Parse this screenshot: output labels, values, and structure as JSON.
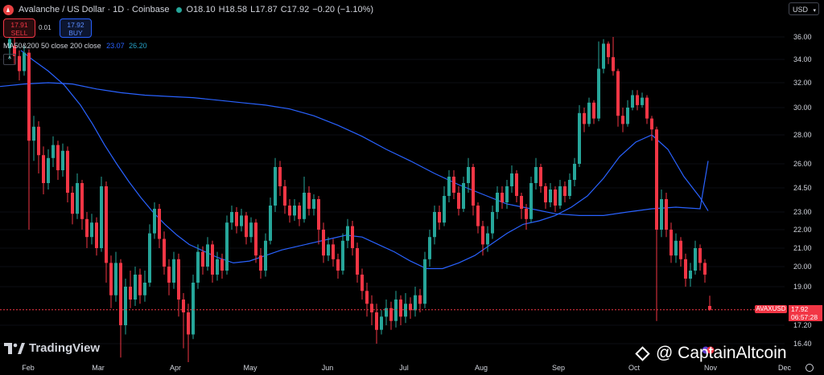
{
  "header": {
    "title": "Avalanche / US Dollar · 1D · Coinbase",
    "open": "O18.10",
    "high": "H18.58",
    "low": "L17.87",
    "close": "C17.92",
    "change": "−0.20 (−1.10%)"
  },
  "trade": {
    "sell_price": "17.91",
    "sell_label": "SELL",
    "spread": "0.01",
    "buy_price": "17.92",
    "buy_label": "BUY"
  },
  "indicator": {
    "label": "MA50&200 50 close 200 close",
    "ma50_value": "23.07",
    "ma200_value": "26.20"
  },
  "currency": "USD",
  "price_label": {
    "ticker": "AVAXUSD",
    "price": "17.92",
    "countdown": "06:57:28"
  },
  "branding": {
    "tradingview": "TradingView",
    "watermark": "@ CaptainAltcoin"
  },
  "colors": {
    "up": "#26a69a",
    "down": "#f23645",
    "ma50": "#2962ff",
    "ma200": "#2962ff",
    "background": "#000000"
  },
  "chart_data": {
    "type": "candlestick",
    "symbol": "AVAXUSD",
    "exchange": "Coinbase",
    "interval": "1D",
    "y_ticks": [
      "36.00",
      "34.00",
      "32.00",
      "30.00",
      "28.00",
      "26.00",
      "24.50",
      "23.00",
      "22.00",
      "21.00",
      "20.00",
      "19.00",
      "17.20",
      "16.40"
    ],
    "x_ticks": [
      "Feb",
      "Mar",
      "Apr",
      "May",
      "Jun",
      "Jul",
      "Aug",
      "Sep",
      "Oct",
      "Nov",
      "Dec"
    ],
    "last_price": 17.92,
    "ma50": [
      [
        26,
        34.8
      ],
      [
        40,
        34.0
      ],
      [
        60,
        33.0
      ],
      [
        80,
        31.8
      ],
      [
        100,
        30.2
      ],
      [
        115,
        28.8
      ],
      [
        130,
        27.3
      ],
      [
        145,
        26.0
      ],
      [
        160,
        24.9
      ],
      [
        175,
        23.9
      ],
      [
        190,
        23.0
      ],
      [
        205,
        22.3
      ],
      [
        220,
        21.7
      ],
      [
        235,
        21.2
      ],
      [
        250,
        20.9
      ],
      [
        270,
        20.5
      ],
      [
        290,
        20.2
      ],
      [
        310,
        20.3
      ],
      [
        330,
        20.6
      ],
      [
        350,
        20.9
      ],
      [
        370,
        21.1
      ],
      [
        390,
        21.3
      ],
      [
        410,
        21.5
      ],
      [
        430,
        21.7
      ],
      [
        450,
        21.6
      ],
      [
        470,
        21.2
      ],
      [
        490,
        20.8
      ],
      [
        510,
        20.3
      ],
      [
        530,
        19.9
      ],
      [
        550,
        19.9
      ],
      [
        570,
        20.2
      ],
      [
        590,
        20.6
      ],
      [
        610,
        21.2
      ],
      [
        630,
        21.8
      ],
      [
        650,
        22.3
      ],
      [
        670,
        22.5
      ],
      [
        690,
        22.8
      ],
      [
        710,
        23.3
      ],
      [
        730,
        24.0
      ],
      [
        750,
        25.1
      ],
      [
        770,
        26.5
      ],
      [
        790,
        27.5
      ],
      [
        810,
        28.0
      ],
      [
        830,
        27.0
      ],
      [
        850,
        25.2
      ],
      [
        870,
        23.9
      ],
      [
        880,
        23.07
      ]
    ],
    "ma200": [
      [
        0,
        31.7
      ],
      [
        30,
        31.9
      ],
      [
        60,
        32.0
      ],
      [
        90,
        31.9
      ],
      [
        120,
        31.5
      ],
      [
        150,
        31.2
      ],
      [
        180,
        31.0
      ],
      [
        210,
        30.9
      ],
      [
        240,
        30.8
      ],
      [
        270,
        30.6
      ],
      [
        300,
        30.4
      ],
      [
        330,
        30.2
      ],
      [
        360,
        29.9
      ],
      [
        390,
        29.4
      ],
      [
        420,
        28.7
      ],
      [
        450,
        27.9
      ],
      [
        480,
        27.0
      ],
      [
        510,
        26.2
      ],
      [
        540,
        25.4
      ],
      [
        570,
        24.7
      ],
      [
        600,
        24.1
      ],
      [
        630,
        23.5
      ],
      [
        660,
        23.2
      ],
      [
        690,
        22.9
      ],
      [
        720,
        22.8
      ],
      [
        750,
        22.8
      ],
      [
        780,
        23.0
      ],
      [
        810,
        23.2
      ],
      [
        840,
        23.3
      ],
      [
        870,
        23.2
      ],
      [
        880,
        26.2
      ]
    ],
    "candles": [
      [
        12,
        35.0,
        35.8,
        34.0,
        36.5
      ],
      [
        18,
        35.2,
        34.3,
        33.6,
        35.9
      ],
      [
        24,
        34.3,
        33.0,
        32.2,
        34.8
      ],
      [
        30,
        33.0,
        34.6,
        32.6,
        35.2
      ],
      [
        36,
        34.6,
        27.6,
        22.0,
        34.9
      ],
      [
        42,
        27.6,
        28.6,
        26.2,
        29.4
      ],
      [
        48,
        28.6,
        26.6,
        25.4,
        29.0
      ],
      [
        54,
        26.6,
        24.8,
        24.1,
        27.2
      ],
      [
        60,
        24.8,
        26.4,
        24.4,
        27.0
      ],
      [
        66,
        26.4,
        27.3,
        25.8,
        27.9
      ],
      [
        72,
        27.3,
        25.6,
        25.0,
        27.6
      ],
      [
        78,
        25.6,
        26.9,
        25.2,
        27.4
      ],
      [
        84,
        26.9,
        24.2,
        23.6,
        27.2
      ],
      [
        90,
        24.2,
        22.9,
        22.3,
        24.6
      ],
      [
        96,
        22.9,
        24.8,
        22.6,
        25.4
      ],
      [
        102,
        24.8,
        22.6,
        22.0,
        25.0
      ],
      [
        108,
        22.6,
        21.6,
        21.0,
        23.0
      ],
      [
        114,
        21.6,
        22.4,
        21.2,
        22.9
      ],
      [
        120,
        22.4,
        21.0,
        20.6,
        22.7
      ],
      [
        126,
        21.0,
        24.6,
        20.8,
        25.2
      ],
      [
        132,
        24.6,
        20.2,
        19.2,
        24.9
      ],
      [
        138,
        20.2,
        18.6,
        18.0,
        20.6
      ],
      [
        144,
        18.6,
        20.2,
        18.3,
        20.8
      ],
      [
        150,
        20.2,
        17.2,
        15.8,
        20.4
      ],
      [
        156,
        17.2,
        19.0,
        16.8,
        19.4
      ],
      [
        162,
        19.0,
        18.4,
        18.0,
        19.8
      ],
      [
        168,
        18.4,
        19.6,
        18.1,
        20.0
      ],
      [
        174,
        19.6,
        18.6,
        18.2,
        19.9
      ],
      [
        180,
        18.6,
        19.2,
        18.3,
        19.8
      ],
      [
        186,
        19.2,
        21.8,
        19.0,
        22.3
      ],
      [
        192,
        21.8,
        23.2,
        21.5,
        23.6
      ],
      [
        198,
        23.2,
        21.5,
        21.0,
        23.5
      ],
      [
        204,
        21.5,
        20.0,
        19.6,
        21.9
      ],
      [
        210,
        20.0,
        19.2,
        18.6,
        20.4
      ],
      [
        216,
        19.2,
        20.4,
        18.9,
        20.8
      ],
      [
        222,
        20.4,
        18.4,
        17.6,
        20.7
      ],
      [
        228,
        18.4,
        17.8,
        16.2,
        18.7
      ],
      [
        234,
        17.8,
        16.8,
        15.6,
        18.2
      ],
      [
        240,
        16.8,
        19.2,
        16.6,
        19.6
      ],
      [
        246,
        19.2,
        20.8,
        18.9,
        21.2
      ],
      [
        252,
        20.8,
        20.0,
        19.6,
        21.1
      ],
      [
        258,
        20.0,
        21.2,
        19.8,
        21.6
      ],
      [
        264,
        21.2,
        19.6,
        19.2,
        21.4
      ],
      [
        270,
        19.6,
        20.4,
        19.3,
        20.8
      ],
      [
        276,
        20.4,
        19.8,
        19.4,
        20.7
      ],
      [
        282,
        19.8,
        22.4,
        19.6,
        22.8
      ],
      [
        288,
        22.4,
        23.0,
        22.0,
        23.4
      ],
      [
        294,
        23.0,
        22.2,
        21.8,
        23.3
      ],
      [
        300,
        22.2,
        22.8,
        21.9,
        23.2
      ],
      [
        306,
        22.8,
        21.6,
        21.2,
        23.0
      ],
      [
        312,
        21.6,
        22.4,
        21.3,
        22.7
      ],
      [
        318,
        22.4,
        20.6,
        20.2,
        22.6
      ],
      [
        324,
        20.6,
        19.8,
        19.4,
        21.0
      ],
      [
        330,
        19.8,
        21.4,
        19.5,
        21.8
      ],
      [
        336,
        21.4,
        23.4,
        21.2,
        23.9
      ],
      [
        342,
        23.4,
        25.8,
        23.0,
        26.4
      ],
      [
        348,
        25.8,
        24.6,
        24.0,
        26.2
      ],
      [
        354,
        24.6,
        23.4,
        22.9,
        25.0
      ],
      [
        360,
        23.4,
        22.8,
        22.4,
        23.8
      ],
      [
        366,
        22.8,
        23.4,
        22.5,
        23.8
      ],
      [
        372,
        23.4,
        22.6,
        22.2,
        23.6
      ],
      [
        378,
        22.6,
        24.2,
        22.4,
        25.2
      ],
      [
        384,
        24.2,
        23.2,
        22.8,
        24.6
      ],
      [
        390,
        23.2,
        23.8,
        22.8,
        24.1
      ],
      [
        396,
        23.8,
        22.0,
        21.2,
        24.0
      ],
      [
        402,
        22.0,
        20.6,
        20.2,
        22.4
      ],
      [
        408,
        20.6,
        21.2,
        20.3,
        21.6
      ],
      [
        414,
        21.2,
        20.4,
        20.0,
        21.5
      ],
      [
        420,
        20.4,
        19.8,
        19.4,
        20.7
      ],
      [
        426,
        19.8,
        21.4,
        19.6,
        21.8
      ],
      [
        432,
        21.4,
        22.2,
        21.0,
        22.6
      ],
      [
        438,
        22.2,
        21.0,
        20.6,
        22.5
      ],
      [
        444,
        21.0,
        19.6,
        19.2,
        21.3
      ],
      [
        450,
        19.6,
        18.8,
        18.4,
        19.9
      ],
      [
        456,
        18.8,
        18.2,
        17.6,
        19.2
      ],
      [
        462,
        18.2,
        17.8,
        17.2,
        18.6
      ],
      [
        468,
        17.8,
        17.0,
        16.4,
        18.2
      ],
      [
        474,
        17.0,
        17.6,
        16.8,
        17.9
      ],
      [
        480,
        17.6,
        18.0,
        17.2,
        18.4
      ],
      [
        486,
        18.0,
        17.4,
        17.0,
        18.3
      ],
      [
        492,
        17.4,
        18.4,
        17.1,
        18.8
      ],
      [
        498,
        18.4,
        17.6,
        17.2,
        18.6
      ],
      [
        504,
        17.6,
        18.2,
        17.3,
        18.7
      ],
      [
        510,
        18.2,
        17.9,
        17.5,
        18.5
      ],
      [
        516,
        17.9,
        18.6,
        17.6,
        19.0
      ],
      [
        522,
        18.6,
        18.2,
        17.8,
        18.9
      ],
      [
        528,
        18.2,
        20.4,
        18.0,
        20.8
      ],
      [
        534,
        20.4,
        21.6,
        20.0,
        22.0
      ],
      [
        540,
        21.6,
        23.0,
        21.2,
        23.4
      ],
      [
        546,
        23.0,
        22.4,
        22.0,
        23.4
      ],
      [
        552,
        22.4,
        24.0,
        22.2,
        24.6
      ],
      [
        558,
        24.0,
        25.2,
        23.6,
        25.6
      ],
      [
        564,
        25.2,
        24.2,
        23.8,
        25.6
      ],
      [
        570,
        24.2,
        23.2,
        22.8,
        24.6
      ],
      [
        576,
        23.2,
        24.8,
        23.0,
        25.2
      ],
      [
        582,
        24.8,
        25.8,
        24.2,
        26.4
      ],
      [
        588,
        25.8,
        23.4,
        22.8,
        26.0
      ],
      [
        594,
        23.4,
        22.2,
        21.8,
        23.6
      ],
      [
        600,
        22.2,
        21.2,
        20.6,
        22.5
      ],
      [
        606,
        21.2,
        21.8,
        20.8,
        22.2
      ],
      [
        612,
        21.8,
        23.0,
        21.5,
        23.4
      ],
      [
        618,
        23.0,
        24.2,
        22.6,
        24.6
      ],
      [
        624,
        24.2,
        23.6,
        23.2,
        24.6
      ],
      [
        630,
        23.6,
        24.6,
        23.2,
        25.0
      ],
      [
        636,
        24.6,
        25.4,
        24.2,
        25.9
      ],
      [
        642,
        25.4,
        24.0,
        23.6,
        25.6
      ],
      [
        648,
        24.0,
        23.2,
        22.6,
        24.2
      ],
      [
        654,
        23.2,
        22.6,
        22.0,
        23.5
      ],
      [
        660,
        22.6,
        24.8,
        22.4,
        25.2
      ],
      [
        666,
        24.8,
        25.8,
        24.4,
        26.4
      ],
      [
        672,
        25.8,
        24.6,
        24.2,
        26.0
      ],
      [
        678,
        24.6,
        23.6,
        23.2,
        24.8
      ],
      [
        684,
        23.6,
        24.4,
        23.3,
        24.8
      ],
      [
        690,
        24.4,
        23.4,
        23.0,
        24.6
      ],
      [
        696,
        23.4,
        24.6,
        23.2,
        25.0
      ],
      [
        702,
        24.6,
        24.0,
        23.6,
        24.9
      ],
      [
        708,
        24.0,
        25.0,
        23.8,
        25.4
      ],
      [
        714,
        25.0,
        26.0,
        24.6,
        26.4
      ],
      [
        720,
        26.0,
        29.6,
        25.8,
        30.2
      ],
      [
        726,
        29.6,
        28.8,
        28.2,
        30.0
      ],
      [
        732,
        28.8,
        30.4,
        28.6,
        30.8
      ],
      [
        738,
        30.4,
        29.2,
        28.8,
        30.6
      ],
      [
        744,
        29.2,
        33.2,
        29.0,
        35.6
      ],
      [
        750,
        33.2,
        35.4,
        32.8,
        35.8
      ],
      [
        756,
        35.4,
        34.2,
        33.6,
        35.6
      ],
      [
        762,
        34.2,
        33.0,
        32.6,
        36.0
      ],
      [
        768,
        33.0,
        29.4,
        28.6,
        33.2
      ],
      [
        774,
        29.4,
        28.8,
        28.2,
        30.0
      ],
      [
        780,
        28.8,
        30.0,
        28.6,
        30.6
      ],
      [
        786,
        30.0,
        31.0,
        29.8,
        31.4
      ],
      [
        792,
        31.0,
        30.2,
        29.8,
        31.4
      ],
      [
        798,
        30.2,
        30.8,
        30.0,
        31.2
      ],
      [
        804,
        30.8,
        29.2,
        28.8,
        31.0
      ],
      [
        810,
        29.2,
        28.4,
        27.6,
        29.4
      ],
      [
        816,
        28.4,
        22.0,
        17.4,
        28.6
      ],
      [
        822,
        22.0,
        23.8,
        21.6,
        24.4
      ],
      [
        828,
        23.8,
        22.0,
        21.6,
        24.2
      ],
      [
        834,
        22.0,
        20.6,
        20.2,
        22.4
      ],
      [
        840,
        20.6,
        21.4,
        20.2,
        21.8
      ],
      [
        846,
        21.4,
        20.4,
        20.0,
        21.6
      ],
      [
        852,
        20.4,
        19.4,
        19.0,
        20.7
      ],
      [
        858,
        19.4,
        19.8,
        19.0,
        20.2
      ],
      [
        864,
        19.8,
        21.0,
        19.6,
        21.4
      ],
      [
        870,
        21.0,
        20.2,
        19.8,
        21.2
      ],
      [
        876,
        20.2,
        19.6,
        19.2,
        20.4
      ],
      [
        882,
        18.1,
        17.92,
        17.87,
        18.58
      ]
    ]
  }
}
